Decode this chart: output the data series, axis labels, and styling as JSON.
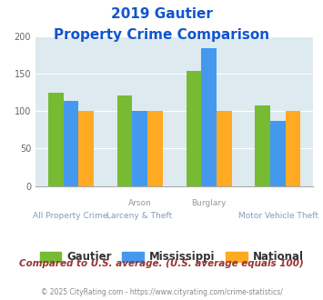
{
  "title_line1": "2019 Gautier",
  "title_line2": "Property Crime Comparison",
  "top_labels": [
    "",
    "Arson",
    "Burglary",
    ""
  ],
  "bottom_labels": [
    "All Property Crime",
    "Larceny & Theft",
    "",
    "Motor Vehicle Theft"
  ],
  "gautier": [
    124,
    121,
    153,
    107
  ],
  "mississippi": [
    113,
    100,
    184,
    87
  ],
  "national": [
    100,
    100,
    100,
    100
  ],
  "bar_colors": {
    "gautier": "#77bb33",
    "mississippi": "#4499ee",
    "national": "#ffaa22"
  },
  "ylim": [
    0,
    200
  ],
  "yticks": [
    0,
    50,
    100,
    150,
    200
  ],
  "footer_text": "Compared to U.S. average. (U.S. average equals 100)",
  "credit_text": "© 2025 CityRating.com - https://www.cityrating.com/crime-statistics/",
  "bg_color": "#ddeaf0",
  "title_color": "#1155cc",
  "footer_color": "#993333",
  "credit_color": "#888888",
  "xlabel_top_color": "#999999",
  "xlabel_bottom_color": "#8899bb"
}
